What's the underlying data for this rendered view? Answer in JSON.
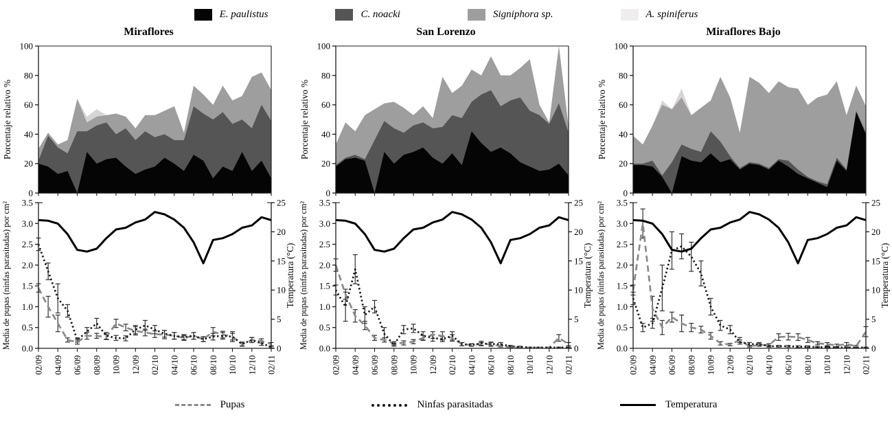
{
  "page": {
    "background": "#ffffff"
  },
  "legend_species": {
    "items": [
      {
        "label": "E. paulistus",
        "color": "#050505"
      },
      {
        "label": "C. noacki",
        "color": "#555555"
      },
      {
        "label": "Signiphora sp.",
        "color": "#9e9e9e"
      },
      {
        "label": "A. spiniferus",
        "color": "#f0eded"
      }
    ]
  },
  "legend_series": {
    "items": [
      {
        "label": "Pupas",
        "style": "dashed",
        "color": "#8a8a8a"
      },
      {
        "label": "Ninfas parasitadas",
        "style": "dotted",
        "color": "#151515"
      },
      {
        "label": "Temperatura",
        "style": "solid",
        "color": "#000000"
      }
    ]
  },
  "axes": {
    "x_tick_labels": [
      "02/09",
      "04/09",
      "06/09",
      "08/09",
      "10/09",
      "12/09",
      "02/10",
      "04/10",
      "06/10",
      "08/10",
      "10/10",
      "12/10",
      "02/11"
    ],
    "top_ylabel": "Porcentaje relativo %",
    "bottom_ylabel_left": "Media de pupas (ninfas parasitadas) por cm²",
    "bottom_ylabel_right": "Temperatura (°C)"
  },
  "chart_data": [
    {
      "name": "miraflores-stacked",
      "type": "area",
      "stacked": true,
      "title": "Miraflores",
      "ylabel": "Porcentaje relativo %",
      "ylim": [
        0,
        100
      ],
      "yticks": [
        0,
        20,
        40,
        60,
        80,
        100
      ],
      "n": 25,
      "x_tick_labels": [
        "02/09",
        "04/09",
        "06/09",
        "08/09",
        "10/09",
        "12/09",
        "02/10",
        "04/10",
        "06/10",
        "08/10",
        "10/10",
        "12/10",
        "02/11"
      ],
      "series": [
        {
          "name": "E. paulistus",
          "color": "#050505",
          "values": [
            20,
            18,
            13,
            15,
            0,
            28,
            20,
            23,
            24,
            18,
            13,
            16,
            18,
            24,
            20,
            15,
            26,
            22,
            10,
            18,
            15,
            28,
            15,
            22,
            10
          ]
        },
        {
          "name": "C. noacki",
          "color": "#555555",
          "values": [
            2,
            21,
            18,
            12,
            42,
            14,
            26,
            25,
            16,
            26,
            23,
            26,
            20,
            16,
            16,
            21,
            33,
            32,
            40,
            37,
            32,
            22,
            29,
            38,
            39
          ]
        },
        {
          "name": "Signiphora sp.",
          "color": "#9e9e9e",
          "values": [
            8,
            2,
            2,
            9,
            22,
            6,
            6,
            5,
            14,
            8,
            8,
            11,
            15,
            16,
            23,
            5,
            14,
            13,
            10,
            18,
            16,
            16,
            35,
            22,
            21
          ]
        },
        {
          "name": "A. spiniferus",
          "color": "#d8d4d4",
          "values": [
            0,
            0,
            0,
            0,
            0,
            4,
            5,
            0,
            0,
            0,
            0,
            0,
            0,
            0,
            0,
            0,
            0,
            0,
            0,
            0,
            0,
            0,
            0,
            0,
            0
          ]
        }
      ]
    },
    {
      "name": "san-lorenzo-stacked",
      "type": "area",
      "stacked": true,
      "title": "San Lorenzo",
      "ylabel": "Porcentaje relativo %",
      "ylim": [
        0,
        100
      ],
      "yticks": [
        0,
        20,
        40,
        60,
        80,
        100
      ],
      "n": 25,
      "x_tick_labels": [
        "02/09",
        "04/09",
        "06/09",
        "08/09",
        "10/09",
        "12/09",
        "02/10",
        "04/10",
        "06/10",
        "08/10",
        "10/10",
        "12/10",
        "02/11"
      ],
      "series": [
        {
          "name": "E. paulistus",
          "color": "#050505",
          "values": [
            18,
            23,
            24,
            22,
            0,
            28,
            20,
            26,
            28,
            31,
            24,
            20,
            27,
            19,
            42,
            34,
            28,
            31,
            27,
            21,
            18,
            15,
            16,
            20,
            12
          ]
        },
        {
          "name": "C. noacki",
          "color": "#555555",
          "values": [
            1,
            1,
            2,
            1,
            36,
            21,
            24,
            15,
            18,
            17,
            20,
            25,
            26,
            32,
            20,
            33,
            42,
            28,
            36,
            44,
            38,
            38,
            31,
            41,
            29
          ]
        },
        {
          "name": "Signiphora sp.",
          "color": "#9e9e9e",
          "values": [
            14,
            24,
            16,
            30,
            21,
            12,
            18,
            17,
            7,
            11,
            7,
            34,
            15,
            22,
            22,
            13,
            23,
            21,
            17,
            20,
            35,
            7,
            1,
            39,
            4
          ]
        },
        {
          "name": "A. spiniferus",
          "color": "#d8d4d4",
          "values": [
            0,
            0,
            0,
            0,
            0,
            0,
            0,
            0,
            0,
            0,
            0,
            0,
            0,
            0,
            0,
            0,
            0,
            0,
            0,
            0,
            0,
            0,
            0,
            0,
            0
          ]
        }
      ]
    },
    {
      "name": "miraflores-bajo-stacked",
      "type": "area",
      "stacked": true,
      "title": "Miraflores Bajo",
      "ylabel": "Porcentaje relativo %",
      "ylim": [
        0,
        100
      ],
      "yticks": [
        0,
        20,
        40,
        60,
        80,
        100
      ],
      "n": 25,
      "x_tick_labels": [
        "02/09",
        "04/09",
        "06/09",
        "08/09",
        "10/09",
        "12/09",
        "02/10",
        "04/10",
        "06/10",
        "08/10",
        "10/10",
        "12/10",
        "02/11"
      ],
      "series": [
        {
          "name": "E. paulistus",
          "color": "#050505",
          "values": [
            19,
            19,
            18,
            11,
            0,
            25,
            22,
            21,
            27,
            21,
            23,
            16,
            20,
            19,
            16,
            22,
            18,
            13,
            10,
            7,
            4,
            22,
            15,
            55,
            40
          ]
        },
        {
          "name": "C. noacki",
          "color": "#555555",
          "values": [
            1,
            1,
            4,
            1,
            21,
            8,
            8,
            7,
            15,
            14,
            2,
            1,
            1,
            1,
            1,
            1,
            4,
            3,
            1,
            1,
            2,
            2,
            1,
            1,
            1
          ]
        },
        {
          "name": "Signiphora sp.",
          "color": "#9e9e9e",
          "values": [
            19,
            13,
            24,
            48,
            36,
            32,
            23,
            30,
            21,
            44,
            40,
            24,
            58,
            55,
            51,
            53,
            50,
            55,
            49,
            57,
            61,
            52,
            37,
            17,
            18
          ]
        },
        {
          "name": "A. spiniferus",
          "color": "#d8d4d4",
          "values": [
            0,
            0,
            0,
            3,
            0,
            6,
            0,
            0,
            0,
            0,
            0,
            0,
            0,
            0,
            0,
            0,
            0,
            0,
            0,
            0,
            0,
            0,
            0,
            0,
            0
          ]
        }
      ]
    },
    {
      "name": "miraflores-lines",
      "type": "line",
      "title": "",
      "ylabel": "Media de pupas (ninfas parasitadas) por cm²",
      "ylabel_right": "Temperatura (°C)",
      "ylim": [
        0,
        3.5
      ],
      "yticks": [
        0,
        0.5,
        1,
        1.5,
        2,
        2.5,
        3,
        3.5
      ],
      "ylim_right": [
        0,
        25
      ],
      "yticks_right": [
        0,
        5,
        10,
        15,
        20,
        25
      ],
      "n": 25,
      "x_tick_labels": [
        "02/09",
        "04/09",
        "06/09",
        "08/09",
        "10/09",
        "12/09",
        "02/10",
        "04/10",
        "06/10",
        "08/10",
        "10/10",
        "12/10",
        "02/11"
      ],
      "series": [
        {
          "name": "Pupas",
          "style": "dashed",
          "color": "#8a8a8a",
          "values": [
            1.45,
            1.0,
            0.6,
            0.2,
            0.15,
            0.3,
            0.3,
            0.27,
            0.6,
            0.5,
            0.42,
            0.38,
            0.34,
            0.33,
            0.3,
            0.25,
            0.3,
            0.22,
            0.4,
            0.33,
            0.28,
            0.1,
            0.2,
            0.18,
            0.1
          ],
          "errors": [
            0.1,
            0.25,
            0.2,
            0.05,
            0.05,
            0.08,
            0.06,
            0.06,
            0.1,
            0.08,
            0.1,
            0.08,
            0.08,
            0.1,
            0.08,
            0.06,
            0.08,
            0.06,
            0.1,
            0.08,
            0.12,
            0.05,
            0.06,
            0.05,
            0.04
          ]
        },
        {
          "name": "Ninfas parasitadas",
          "style": "dotted",
          "color": "#151515",
          "values": [
            2.5,
            1.85,
            1.2,
            0.9,
            0.2,
            0.4,
            0.6,
            0.3,
            0.25,
            0.24,
            0.45,
            0.55,
            0.45,
            0.35,
            0.3,
            0.27,
            0.3,
            0.22,
            0.28,
            0.3,
            0.28,
            0.1,
            0.2,
            0.12,
            0.03
          ],
          "errors": [
            0.15,
            0.2,
            0.35,
            0.15,
            0.05,
            0.1,
            0.12,
            0.08,
            0.06,
            0.06,
            0.1,
            0.12,
            0.1,
            0.08,
            0.08,
            0.06,
            0.08,
            0.06,
            0.08,
            0.08,
            0.08,
            0.04,
            0.06,
            0.05,
            0.02
          ]
        },
        {
          "name": "Temperatura",
          "style": "solid",
          "color": "#000000",
          "axis": "right",
          "values": [
            22.0,
            21.9,
            21.4,
            19.6,
            16.9,
            16.6,
            17.1,
            18.9,
            20.4,
            20.7,
            21.6,
            22.1,
            23.4,
            23.0,
            22.1,
            20.7,
            18.2,
            14.6,
            18.6,
            18.9,
            19.6,
            20.7,
            21.1,
            22.5,
            22.0
          ]
        }
      ]
    },
    {
      "name": "san-lorenzo-lines",
      "type": "line",
      "title": "",
      "ylabel": "Media de pupas (ninfas parasitadas) por cm²",
      "ylabel_right": "Temperatura (°C)",
      "ylim": [
        0,
        3.5
      ],
      "yticks": [
        0,
        0.5,
        1,
        1.5,
        2,
        2.5,
        3,
        3.5
      ],
      "ylim_right": [
        0,
        25
      ],
      "yticks_right": [
        0,
        5,
        10,
        15,
        20,
        25
      ],
      "n": 25,
      "x_tick_labels": [
        "02/09",
        "04/09",
        "06/09",
        "08/09",
        "10/09",
        "12/09",
        "02/10",
        "04/10",
        "06/10",
        "08/10",
        "10/10",
        "12/10",
        "02/11"
      ],
      "series": [
        {
          "name": "Pupas",
          "style": "dashed",
          "color": "#8a8a8a",
          "values": [
            2.0,
            1.3,
            0.78,
            0.55,
            0.25,
            0.2,
            0.12,
            0.13,
            0.16,
            0.25,
            0.32,
            0.3,
            0.25,
            0.1,
            0.08,
            0.1,
            0.1,
            0.05,
            0.03,
            0.02,
            0.02,
            0.02,
            0.02,
            0.25,
            0.1
          ],
          "errors": [
            0.15,
            0.12,
            0.15,
            0.1,
            0.06,
            0.05,
            0.04,
            0.05,
            0.05,
            0.06,
            0.08,
            0.1,
            0.08,
            0.04,
            0.03,
            0.04,
            0.05,
            0.02,
            0.02,
            0.01,
            0.01,
            0.01,
            0.01,
            0.08,
            0.04
          ]
        },
        {
          "name": "Ninfas parasitadas",
          "style": "dotted",
          "color": "#151515",
          "values": [
            1.4,
            1.0,
            1.9,
            0.8,
            1.0,
            0.35,
            0.08,
            0.45,
            0.48,
            0.3,
            0.25,
            0.22,
            0.3,
            0.1,
            0.08,
            0.12,
            0.1,
            0.1,
            0.05,
            0.03,
            0.02,
            0.02,
            0.02,
            0.02,
            0.02
          ],
          "errors": [
            0.12,
            0.35,
            0.35,
            0.2,
            0.15,
            0.15,
            0.03,
            0.1,
            0.1,
            0.1,
            0.08,
            0.06,
            0.1,
            0.04,
            0.03,
            0.05,
            0.04,
            0.04,
            0.02,
            0.02,
            0.01,
            0.01,
            0.01,
            0.01,
            0.01
          ]
        },
        {
          "name": "Temperatura",
          "style": "solid",
          "color": "#000000",
          "axis": "right",
          "values": [
            22.0,
            21.9,
            21.4,
            19.6,
            16.9,
            16.6,
            17.1,
            18.9,
            20.4,
            20.7,
            21.6,
            22.1,
            23.4,
            23.0,
            22.1,
            20.7,
            18.2,
            14.6,
            18.6,
            18.9,
            19.6,
            20.7,
            21.1,
            22.5,
            22.0
          ]
        }
      ]
    },
    {
      "name": "miraflores-bajo-lines",
      "type": "line",
      "title": "",
      "ylabel": "Media de pupas (ninfas parasitadas) por cm²",
      "ylabel_right": "Temperatura (°C)",
      "ylim": [
        0,
        3.5
      ],
      "yticks": [
        0,
        0.5,
        1,
        1.5,
        2,
        2.5,
        3,
        3.5
      ],
      "ylim_right": [
        0,
        25
      ],
      "yticks_right": [
        0,
        5,
        10,
        15,
        20,
        25
      ],
      "n": 25,
      "x_tick_labels": [
        "02/09",
        "04/09",
        "06/09",
        "08/09",
        "10/09",
        "12/09",
        "02/10",
        "04/10",
        "06/10",
        "08/10",
        "10/10",
        "12/10",
        "02/11"
      ],
      "series": [
        {
          "name": "Pupas",
          "style": "dashed",
          "color": "#8a8a8a",
          "values": [
            1.4,
            3.0,
            0.95,
            0.5,
            0.75,
            0.6,
            0.5,
            0.45,
            0.3,
            0.12,
            0.09,
            0.2,
            0.05,
            0.08,
            0.08,
            0.27,
            0.28,
            0.27,
            0.2,
            0.12,
            0.1,
            0.07,
            0.1,
            0.05,
            0.4
          ],
          "errors": [
            0.12,
            0.35,
            0.3,
            0.17,
            0.12,
            0.2,
            0.1,
            0.08,
            0.08,
            0.04,
            0.03,
            0.06,
            0.02,
            0.03,
            0.03,
            0.08,
            0.08,
            0.08,
            0.06,
            0.04,
            0.04,
            0.03,
            0.04,
            0.02,
            0.12
          ]
        },
        {
          "name": "Ninfas parasitadas",
          "style": "dotted",
          "color": "#151515",
          "values": [
            1.2,
            0.5,
            0.6,
            1.45,
            2.35,
            2.45,
            2.2,
            1.8,
            1.0,
            0.55,
            0.45,
            0.15,
            0.1,
            0.1,
            0.05,
            0.05,
            0.05,
            0.04,
            0.04,
            0.03,
            0.03,
            0.02,
            0.02,
            0.02,
            0.02
          ],
          "errors": [
            0.15,
            0.1,
            0.12,
            0.55,
            0.45,
            0.3,
            0.35,
            0.3,
            0.2,
            0.12,
            0.1,
            0.05,
            0.04,
            0.04,
            0.02,
            0.02,
            0.02,
            0.02,
            0.02,
            0.01,
            0.01,
            0.01,
            0.01,
            0.01,
            0.01
          ]
        },
        {
          "name": "Temperatura",
          "style": "solid",
          "color": "#000000",
          "axis": "right",
          "values": [
            22.0,
            21.9,
            21.4,
            19.6,
            16.9,
            16.6,
            17.1,
            18.9,
            20.4,
            20.7,
            21.6,
            22.1,
            23.4,
            23.0,
            22.1,
            20.7,
            18.2,
            14.6,
            18.6,
            18.9,
            19.6,
            20.7,
            21.1,
            22.5,
            22.0
          ]
        }
      ]
    }
  ]
}
